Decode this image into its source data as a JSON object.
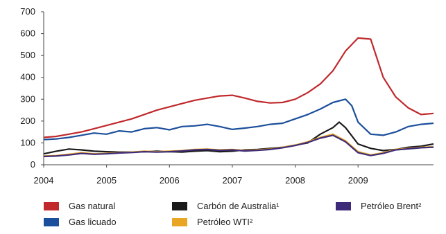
{
  "chart_data": {
    "type": "line",
    "title": "",
    "xlabel": "",
    "ylabel": "",
    "xlim": [
      2004,
      2010.2
    ],
    "ylim": [
      0,
      700
    ],
    "x_ticks": [
      "2004",
      "2005",
      "2006",
      "2007",
      "2008",
      "2009"
    ],
    "y_ticks": [
      "700",
      "600",
      "500",
      "400",
      "300",
      "200",
      "100",
      "0"
    ],
    "grid": false,
    "legend_position": "bottom",
    "series": [
      {
        "name": "Gas natural",
        "color": "#c0282b",
        "x": [
          2004.0,
          2004.2,
          2004.4,
          2004.6,
          2004.8,
          2005.0,
          2005.2,
          2005.4,
          2005.6,
          2005.8,
          2006.0,
          2006.2,
          2006.4,
          2006.6,
          2006.8,
          2007.0,
          2007.2,
          2007.4,
          2007.6,
          2007.8,
          2008.0,
          2008.2,
          2008.4,
          2008.6,
          2008.8,
          2009.0,
          2009.2,
          2009.4,
          2009.6,
          2009.8,
          2010.0,
          2010.2
        ],
        "y": [
          125,
          130,
          140,
          150,
          165,
          180,
          195,
          210,
          230,
          250,
          265,
          280,
          295,
          305,
          315,
          318,
          305,
          290,
          283,
          285,
          300,
          330,
          370,
          430,
          520,
          580,
          575,
          400,
          310,
          260,
          230,
          235
        ]
      },
      {
        "name": "Gas licuado",
        "color": "#1b4e9b",
        "x": [
          2004.0,
          2004.2,
          2004.4,
          2004.6,
          2004.8,
          2005.0,
          2005.2,
          2005.4,
          2005.6,
          2005.8,
          2006.0,
          2006.2,
          2006.4,
          2006.6,
          2006.8,
          2007.0,
          2007.2,
          2007.4,
          2007.6,
          2007.8,
          2008.0,
          2008.2,
          2008.4,
          2008.6,
          2008.8,
          2008.9,
          2009.0,
          2009.2,
          2009.4,
          2009.6,
          2009.8,
          2010.0,
          2010.2
        ],
        "y": [
          115,
          118,
          125,
          135,
          145,
          140,
          155,
          150,
          165,
          170,
          160,
          175,
          178,
          185,
          175,
          162,
          168,
          175,
          185,
          190,
          210,
          230,
          255,
          285,
          300,
          270,
          195,
          140,
          135,
          150,
          175,
          185,
          190
        ]
      },
      {
        "name": "Carbón de Australia¹",
        "color": "#1a1a1a",
        "x": [
          2004.0,
          2004.2,
          2004.4,
          2004.6,
          2004.8,
          2005.0,
          2005.2,
          2005.4,
          2005.6,
          2005.8,
          2006.0,
          2006.2,
          2006.4,
          2006.6,
          2006.8,
          2007.0,
          2007.2,
          2007.4,
          2007.6,
          2007.8,
          2008.0,
          2008.2,
          2008.4,
          2008.6,
          2008.7,
          2008.8,
          2009.0,
          2009.2,
          2009.4,
          2009.6,
          2009.8,
          2010.0,
          2010.2
        ],
        "y": [
          50,
          62,
          72,
          68,
          62,
          60,
          58,
          58,
          60,
          62,
          60,
          58,
          62,
          65,
          60,
          62,
          68,
          70,
          75,
          80,
          90,
          100,
          140,
          170,
          195,
          170,
          95,
          75,
          65,
          70,
          80,
          85,
          95
        ]
      },
      {
        "name": "Petróleo WTI²",
        "color": "#e8a624",
        "x": [
          2004.0,
          2004.2,
          2004.4,
          2004.6,
          2004.8,
          2005.0,
          2005.2,
          2005.4,
          2005.6,
          2005.8,
          2006.0,
          2006.2,
          2006.4,
          2006.6,
          2006.8,
          2007.0,
          2007.2,
          2007.4,
          2007.6,
          2007.8,
          2008.0,
          2008.2,
          2008.4,
          2008.6,
          2008.8,
          2009.0,
          2009.2,
          2009.4,
          2009.6,
          2009.8,
          2010.0,
          2010.2
        ],
        "y": [
          40,
          42,
          48,
          55,
          50,
          52,
          55,
          58,
          62,
          60,
          62,
          65,
          70,
          72,
          68,
          70,
          65,
          68,
          72,
          80,
          90,
          105,
          125,
          140,
          110,
          60,
          45,
          55,
          70,
          75,
          80,
          82
        ]
      },
      {
        "name": "Petróleo Brent²",
        "color": "#3d2a78",
        "x": [
          2004.0,
          2004.2,
          2004.4,
          2004.6,
          2004.8,
          2005.0,
          2005.2,
          2005.4,
          2005.6,
          2005.8,
          2006.0,
          2006.2,
          2006.4,
          2006.6,
          2006.8,
          2007.0,
          2007.2,
          2007.4,
          2007.6,
          2007.8,
          2008.0,
          2008.2,
          2008.4,
          2008.6,
          2008.8,
          2009.0,
          2009.2,
          2009.4,
          2009.6,
          2009.8,
          2010.0,
          2010.2
        ],
        "y": [
          38,
          40,
          45,
          52,
          48,
          50,
          54,
          56,
          60,
          58,
          60,
          63,
          68,
          70,
          66,
          68,
          63,
          66,
          70,
          78,
          88,
          102,
          122,
          135,
          105,
          55,
          42,
          52,
          68,
          73,
          78,
          80
        ]
      }
    ]
  },
  "legend": {
    "item1": "Gas natural",
    "item2": "Gas licuado",
    "item3": "Carbón de Australia¹",
    "item4": "Petróleo WTI²",
    "item5": "Petróleo Brent²"
  }
}
